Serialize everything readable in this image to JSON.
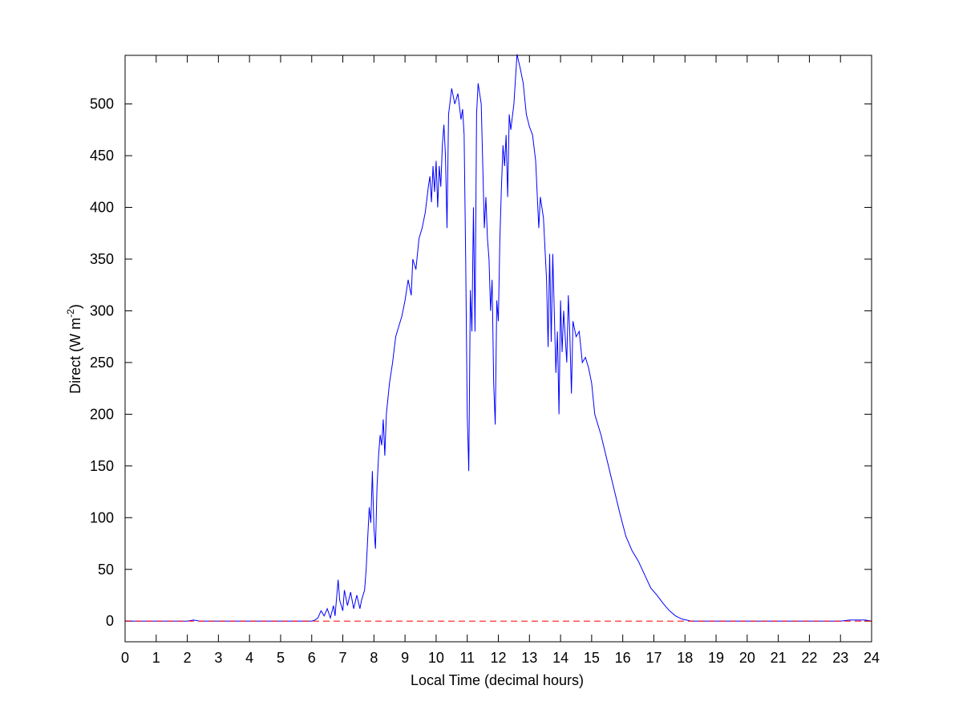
{
  "chart_data": {
    "type": "line",
    "x_label": "Local Time (decimal hours)",
    "y_label": [
      "Direct (W m",
      "-2",
      ")"
    ],
    "x": [
      0,
      2.0,
      2.2,
      2.4,
      6.0,
      6.1,
      6.2,
      6.3,
      6.4,
      6.5,
      6.6,
      6.7,
      6.75,
      6.85,
      6.9,
      7.0,
      7.05,
      7.15,
      7.25,
      7.35,
      7.45,
      7.55,
      7.6,
      7.7,
      7.75,
      7.8,
      7.85,
      7.9,
      7.95,
      8.0,
      8.05,
      8.1,
      8.15,
      8.2,
      8.25,
      8.3,
      8.35,
      8.4,
      8.5,
      8.6,
      8.7,
      8.8,
      8.9,
      9.0,
      9.1,
      9.2,
      9.25,
      9.35,
      9.45,
      9.55,
      9.65,
      9.75,
      9.8,
      9.85,
      9.9,
      9.95,
      10.0,
      10.05,
      10.1,
      10.15,
      10.2,
      10.25,
      10.3,
      10.35,
      10.4,
      10.5,
      10.6,
      10.7,
      10.8,
      10.85,
      10.9,
      10.95,
      11.0,
      11.05,
      11.1,
      11.15,
      11.2,
      11.25,
      11.3,
      11.35,
      11.45,
      11.55,
      11.6,
      11.65,
      11.7,
      11.75,
      11.8,
      11.85,
      11.9,
      11.95,
      12.0,
      12.05,
      12.1,
      12.15,
      12.2,
      12.25,
      12.3,
      12.35,
      12.4,
      12.5,
      12.6,
      12.7,
      12.8,
      12.9,
      13.0,
      13.1,
      13.2,
      13.3,
      13.35,
      13.45,
      13.55,
      13.6,
      13.65,
      13.7,
      13.75,
      13.85,
      13.9,
      13.95,
      14.0,
      14.05,
      14.1,
      14.2,
      14.25,
      14.3,
      14.35,
      14.4,
      14.5,
      14.6,
      14.7,
      14.8,
      14.9,
      15.0,
      15.1,
      15.3,
      15.5,
      15.7,
      15.9,
      16.1,
      16.3,
      16.5,
      16.7,
      16.9,
      17.1,
      17.3,
      17.5,
      17.7,
      17.9,
      18.2,
      23.0,
      23.3,
      23.8,
      24
    ],
    "series": [
      {
        "color": "#0000ff",
        "values": [
          0,
          0,
          1,
          0,
          0,
          1,
          3,
          10,
          5,
          12,
          3,
          15,
          5,
          40,
          20,
          10,
          30,
          15,
          28,
          12,
          25,
          12,
          20,
          30,
          50,
          80,
          110,
          95,
          145,
          90,
          70,
          130,
          160,
          180,
          170,
          195,
          160,
          200,
          230,
          250,
          275,
          285,
          295,
          310,
          330,
          315,
          350,
          340,
          370,
          380,
          395,
          420,
          430,
          405,
          440,
          415,
          445,
          400,
          440,
          420,
          460,
          480,
          450,
          380,
          490,
          515,
          500,
          510,
          485,
          495,
          470,
          350,
          200,
          145,
          320,
          280,
          400,
          280,
          490,
          520,
          500,
          380,
          410,
          370,
          350,
          300,
          330,
          230,
          190,
          310,
          290,
          370,
          420,
          460,
          440,
          470,
          410,
          490,
          475,
          500,
          548,
          535,
          520,
          490,
          478,
          470,
          445,
          380,
          410,
          390,
          330,
          265,
          355,
          270,
          355,
          240,
          280,
          200,
          310,
          260,
          300,
          250,
          315,
          275,
          220,
          290,
          275,
          280,
          250,
          255,
          245,
          230,
          200,
          180,
          155,
          130,
          105,
          82,
          68,
          58,
          45,
          32,
          25,
          17,
          10,
          5,
          2,
          0,
          0,
          1,
          1,
          0
        ]
      }
    ],
    "reference_line": {
      "value": 0,
      "color": "#ff0000",
      "style": "dashed"
    },
    "xlim": [
      0,
      24
    ],
    "xticks": [
      0,
      1,
      2,
      3,
      4,
      5,
      6,
      7,
      8,
      9,
      10,
      11,
      12,
      13,
      14,
      15,
      16,
      17,
      18,
      19,
      20,
      21,
      22,
      23,
      24
    ],
    "ylim": [
      -20,
      547
    ],
    "yticks": [
      0,
      50,
      100,
      150,
      200,
      250,
      300,
      350,
      400,
      450,
      500
    ]
  }
}
